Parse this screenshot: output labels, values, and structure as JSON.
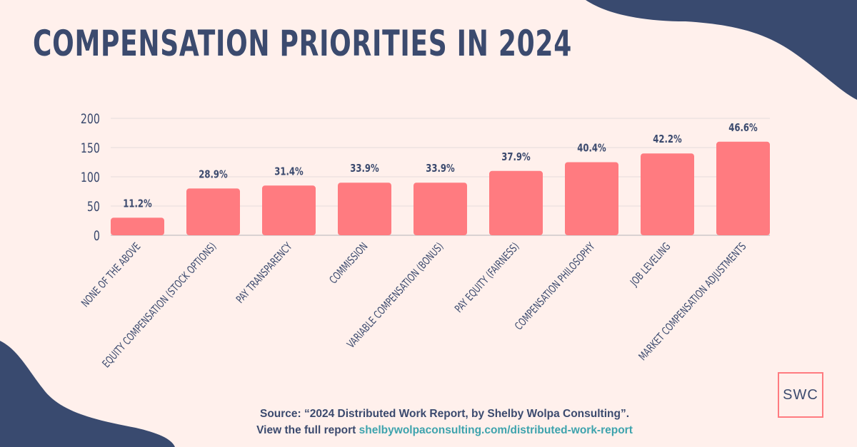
{
  "title": "COMPENSATION PRIORITIES IN 2024",
  "colors": {
    "background": "#fff0ec",
    "bar": "#ff7b80",
    "text": "#3b4a6e",
    "blob": "#394a6f",
    "link": "#3ea3ad"
  },
  "chart_data": {
    "type": "bar",
    "title": "",
    "xlabel": "",
    "ylabel": "",
    "ylim": [
      0,
      200
    ],
    "yticks": [
      0,
      50,
      100,
      150,
      200
    ],
    "grid": true,
    "categories": [
      "NONE OF THE ABOVE",
      "EQUITY COMPENSATION (STOCK OPTIONS)",
      "PAY TRANSPARENCY",
      "COMMISSION",
      "VARIABLE COMPENSATION (BONUS)",
      "PAY EQUITY (FAIRNESS)",
      "COMPENSATION PHILOSOPHY",
      "JOB LEVELING",
      "MARKET COMPENSATION ADJUSTMENTS"
    ],
    "values": [
      30,
      80,
      85,
      90,
      90,
      110,
      125,
      140,
      160
    ],
    "data_labels": [
      "11.2%",
      "28.9%",
      "31.4%",
      "33.9%",
      "33.9%",
      "37.9%",
      "40.4%",
      "42.2%",
      "46.6%"
    ]
  },
  "source": {
    "line1": "Source: “2024 Distributed Work Report, by Shelby Wolpa Consulting”.",
    "line2_prefix": "View the full report ",
    "link": "shelbywolpaconsulting.com/distributed-work-report"
  },
  "logo": "SWC"
}
